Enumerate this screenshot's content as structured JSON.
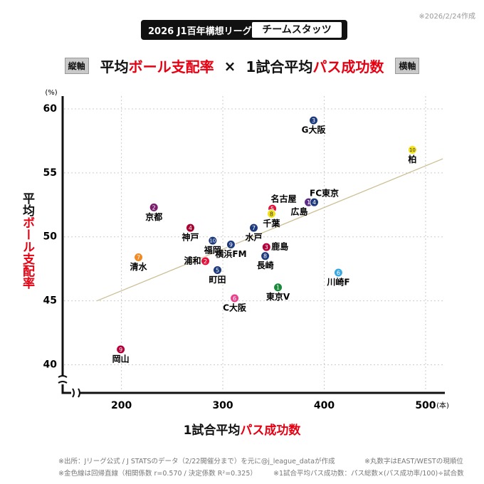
{
  "date_note": "※2026/2/24作成",
  "title": {
    "badge": "2026 J1百年構想リーグ",
    "name": "チームスタッツ"
  },
  "heading": {
    "y_tag": "縦軸",
    "y_pre": "平均",
    "y_em": "ボール支配率",
    "times": "×",
    "x_pre": "1試合平均",
    "x_em": "パス成功数",
    "x_tag": "横軸"
  },
  "footnotes": [
    "※出所：Jリーグ公式 / J STATSのデータ（2/22開催分まで）を元に@j_league_dataが作成",
    "※丸数字はEAST/WESTの現順位",
    "※金色線は回帰直線（相関係数 r=0.570 / 決定係数 R²=0.325）",
    "※1試合平均パス成功数：パス総数×(パス成功率/100)÷試合数"
  ],
  "chart_data": {
    "type": "scatter",
    "ylabel": {
      "pre": "平均",
      "em": "ボール支配率"
    },
    "xlabel": {
      "pre": "1試合平均",
      "em": "パス成功数"
    },
    "yunit": "(%)",
    "xunit": "(本)",
    "xlim": [
      142,
      519
    ],
    "ylim": [
      37.8,
      61
    ],
    "xticks": [
      200,
      300,
      400,
      500
    ],
    "yticks": [
      40,
      45,
      50,
      55,
      60
    ],
    "grid": true,
    "trendline": {
      "x": [
        176,
        517
      ],
      "y": [
        45.0,
        56.1
      ],
      "color": "#cdbf94"
    },
    "points": [
      {
        "label": "G大阪",
        "number": 3,
        "color": "#1c3a7c",
        "x": 389.5,
        "y": 59.1
      },
      {
        "label": "柏",
        "number": 10,
        "color": "#f3e21a",
        "x": 487,
        "y": 56.8
      },
      {
        "label": "名古屋",
        "number": 5,
        "color": "#e3143c",
        "x": 348.8,
        "y": 52.2
      },
      {
        "label": "千葉",
        "number": 8,
        "color": "#f3e21a",
        "x": 348,
        "y": 51.8
      },
      {
        "label": "広島",
        "number": 1,
        "color": "#5b2a86",
        "x": 384.6,
        "y": 52.7
      },
      {
        "label": "FC東京",
        "number": 4,
        "color": "#1c3a7c",
        "x": 390.2,
        "y": 52.7
      },
      {
        "label": "京都",
        "number": 2,
        "color": "#7b1e6e",
        "x": 232,
        "y": 52.3
      },
      {
        "label": "神戸",
        "number": 4,
        "color": "#a8002f",
        "x": 268,
        "y": 50.7
      },
      {
        "label": "水戸",
        "number": 7,
        "color": "#1c3a7c",
        "x": 330.5,
        "y": 50.7
      },
      {
        "label": "福岡",
        "number": 10,
        "color": "#1c3a7c",
        "x": 290,
        "y": 49.7
      },
      {
        "label": "横浜FM",
        "number": 9,
        "color": "#1c3a7c",
        "x": 308,
        "y": 49.4
      },
      {
        "label": "鹿島",
        "number": 3,
        "color": "#b3003a",
        "x": 343,
        "y": 49.2
      },
      {
        "label": "長崎",
        "number": 8,
        "color": "#1c3a7c",
        "x": 341.8,
        "y": 48.5
      },
      {
        "label": "清水",
        "number": 7,
        "color": "#f08a24",
        "x": 216.8,
        "y": 48.4
      },
      {
        "label": "浦和",
        "number": 2,
        "color": "#e3143c",
        "x": 282.8,
        "y": 48.1
      },
      {
        "label": "町田",
        "number": 5,
        "color": "#1c3a7c",
        "x": 294.7,
        "y": 47.4
      },
      {
        "label": "川崎F",
        "number": 6,
        "color": "#3aa8e0",
        "x": 414,
        "y": 47.2
      },
      {
        "label": "東京V",
        "number": 1,
        "color": "#1a8a3a",
        "x": 354.4,
        "y": 46.05
      },
      {
        "label": "C大阪",
        "number": 6,
        "color": "#e8408a",
        "x": 311.6,
        "y": 45.2
      },
      {
        "label": "岡山",
        "number": 9,
        "color": "#b3003a",
        "x": 199.3,
        "y": 41.2
      }
    ]
  }
}
